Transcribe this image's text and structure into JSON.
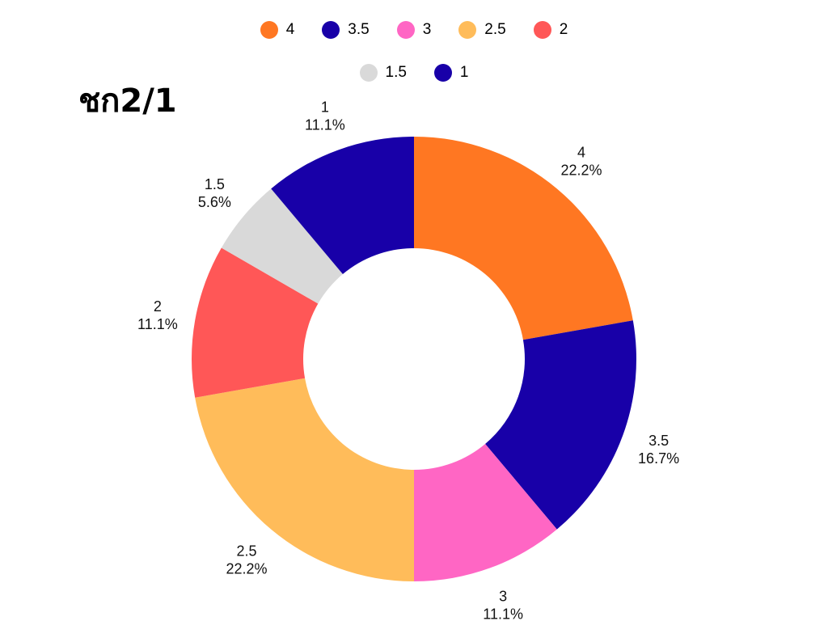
{
  "chart_data": {
    "type": "pie",
    "donut": true,
    "title": "ชก2/1",
    "legend_position": "top",
    "slices": [
      {
        "label": "4",
        "value": 4,
        "percent": "22.2%",
        "color": "#FF7722"
      },
      {
        "label": "3.5",
        "value": 3,
        "percent": "16.7%",
        "color": "#1800A8"
      },
      {
        "label": "3",
        "value": 2,
        "percent": "11.1%",
        "color": "#FF66C4"
      },
      {
        "label": "2.5",
        "value": 4,
        "percent": "22.2%",
        "color": "#FFBC5A"
      },
      {
        "label": "2",
        "value": 2,
        "percent": "11.1%",
        "color": "#FF5757"
      },
      {
        "label": "1.5",
        "value": 1,
        "percent": "5.6%",
        "color": "#D9D9D9"
      },
      {
        "label": "1",
        "value": 2,
        "percent": "11.1%",
        "color": "#1800A8"
      }
    ]
  }
}
